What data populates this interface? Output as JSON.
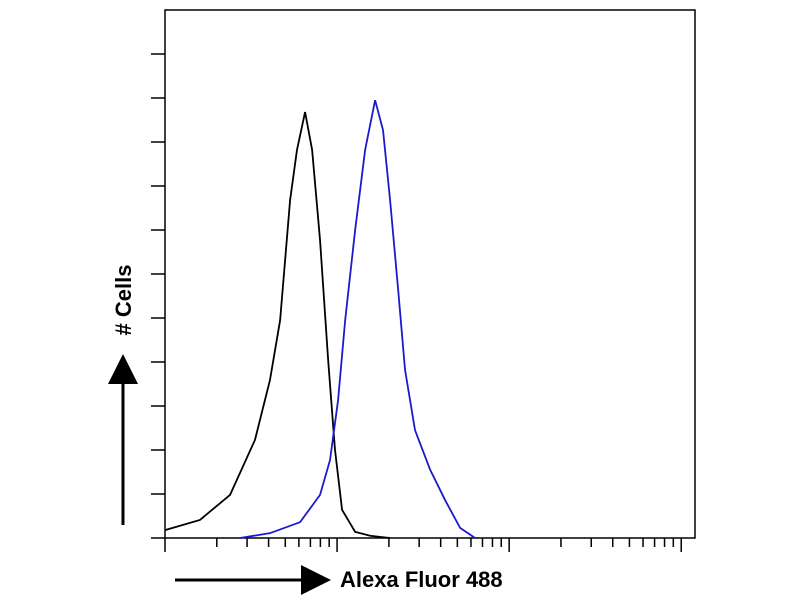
{
  "chart_data": {
    "type": "line",
    "x_label": "Alexa Fluor 488",
    "y_label": "# Cells",
    "xlim": [
      0,
      3.08
    ],
    "ylim": [
      0,
      12
    ],
    "xticks": [
      0,
      0.301,
      0.477,
      0.602,
      0.699,
      0.778,
      0.845,
      0.903,
      0.954,
      1,
      1.301,
      1.477,
      1.602,
      1.699,
      1.778,
      1.845,
      1.903,
      1.954,
      2,
      2.301,
      2.477,
      2.602,
      2.699,
      2.778,
      2.845,
      2.903,
      2.954,
      3
    ],
    "yticks": [
      0,
      1,
      2,
      3,
      4,
      5,
      6,
      7,
      8,
      9,
      10,
      11
    ],
    "series": [
      {
        "color": "#000000",
        "x": [
          0,
          0.203,
          0.378,
          0.523,
          0.61,
          0.669,
          0.727,
          0.767,
          0.814,
          0.855,
          0.901,
          0.948,
          0.988,
          1.029,
          1.105,
          1.192,
          1.308
        ],
        "values": [
          0.18,
          0.41,
          0.98,
          2.23,
          3.59,
          4.95,
          7.68,
          8.82,
          9.68,
          8.82,
          6.77,
          4.05,
          2.0,
          0.64,
          0.14,
          0.05,
          0
        ]
      },
      {
        "color": "#1a1acc",
        "x": [
          0.436,
          0.61,
          0.785,
          0.901,
          0.959,
          1.006,
          1.047,
          1.105,
          1.163,
          1.221,
          1.267,
          1.308,
          1.355,
          1.395,
          1.453,
          1.541,
          1.628,
          1.715,
          1.802
        ],
        "values": [
          0,
          0.11,
          0.36,
          0.98,
          1.77,
          3.14,
          4.95,
          7.0,
          8.82,
          9.95,
          9.27,
          7.68,
          5.64,
          3.82,
          2.45,
          1.55,
          0.86,
          0.23,
          0
        ]
      }
    ]
  }
}
